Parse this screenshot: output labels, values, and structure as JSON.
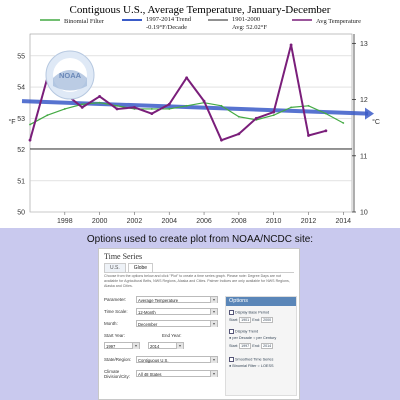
{
  "chart_data": {
    "type": "line",
    "title": "Contiguous U.S., Average Temperature, January-December",
    "x": [
      1996,
      1997,
      1998,
      1999,
      2000,
      2001,
      2002,
      2003,
      2004,
      2005,
      2006,
      2007,
      2008,
      2009,
      2010,
      2011,
      2012,
      2013,
      2014
    ],
    "series": [
      {
        "name": "Binomial Filter",
        "color": "#44aa44",
        "values": [
          52.8,
          53.1,
          53.3,
          53.45,
          53.5,
          53.4,
          53.3,
          53.3,
          53.3,
          53.4,
          53.5,
          53.4,
          53.05,
          52.95,
          53.1,
          53.35,
          53.4,
          53.15,
          52.85
        ]
      },
      {
        "name": "Avg Temperature",
        "color": "#7a1e7a",
        "values": [
          52.3,
          54.3,
          53.8,
          53.35,
          53.7,
          53.3,
          53.35,
          53.15,
          53.45,
          54.3,
          53.55,
          52.3,
          52.5,
          53.0,
          53.2,
          55.35,
          52.45,
          52.6,
          null
        ]
      }
    ],
    "trend": {
      "name": "1997-2014 Trend",
      "sub": "-0.19°F/Decade",
      "start": 53.55,
      "end": 53.15,
      "color": "#3a5bc8"
    },
    "baseline": {
      "name": "1901-2000",
      "sub": "Avg: 52.02°F",
      "value": 52.02,
      "color": "#222222"
    },
    "ylabel_left": "°F",
    "ylabel_right": "°C",
    "y_ticks": [
      50,
      51,
      52,
      53,
      54,
      55
    ],
    "y_ticks_right": [
      10,
      11,
      12,
      13
    ],
    "x_ticks": [
      1998,
      2000,
      2002,
      2004,
      2006,
      2008,
      2010,
      2012,
      2014
    ],
    "ylim": [
      50,
      55.7
    ],
    "xlim": [
      1996,
      2014.5
    ],
    "grid": true,
    "legend": "top"
  },
  "noaa_logo": {
    "text": "NOAA"
  },
  "lower": {
    "title": "Options used to create plot from NOAA/NCDC site:"
  },
  "panel": {
    "title": "Time Series",
    "tabs": [
      "U.S.",
      "Globe"
    ],
    "help": "Choose from the options below and click \"Plot\" to create a time series graph. Please note: Degree Days are not available for Agricultural Belts, NWS Regions, Alaska and Cities. Palmer Indices are only available for NWS Regions, Alaska and Cities.",
    "parameter_label": "Parameter:",
    "parameter_value": "Average Temperature",
    "timescale_label": "Time Scale:",
    "timescale_value": "12-Month",
    "month_label": "Month:",
    "month_value": "December",
    "start_label": "Start Year:",
    "start_value": "1997",
    "end_label": "End Year:",
    "end_value": "2014",
    "state_label": "State/Region:",
    "state_value": "Contiguous U.S.",
    "climate_label": "Climate Division/City:",
    "climate_value": "All 48 States",
    "options_title": "Options",
    "display_base": "Display Base Period",
    "base_start_label": "Start:",
    "base_start": "1901",
    "base_end_label": "End:",
    "base_end": "2000",
    "display_trend": "Display Trend",
    "per_decade": "per Decade",
    "per_century": "per Century",
    "trend_start_label": "Start:",
    "trend_start": "1997",
    "trend_end_label": "End:",
    "trend_end": "2014",
    "smoothed": "Smoothed Time Series",
    "binomial": "Binomial Filter",
    "loess": "LOESS"
  }
}
